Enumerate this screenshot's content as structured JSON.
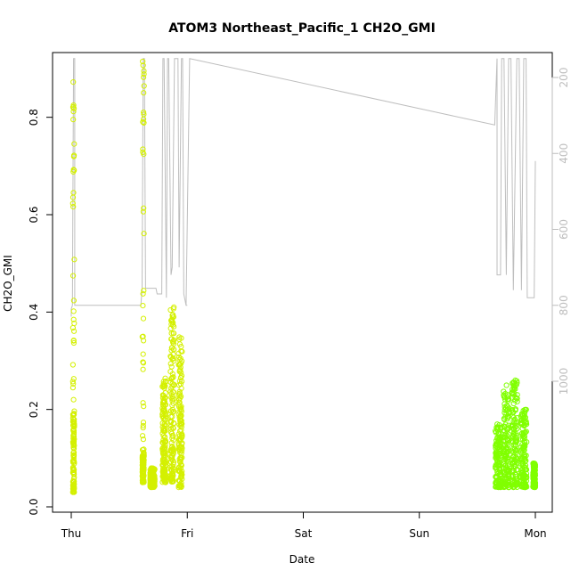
{
  "chart_data": {
    "type": "scatter",
    "title": "ATOM3 Northeast_Pacific_1 CH2O_GMI",
    "xlabel": "Date",
    "ylabel": "CH2O_GMI",
    "x_ticks": [
      "Thu",
      "Fri",
      "Sat",
      "Sun",
      "Mon"
    ],
    "ylim": [
      0,
      0.95
    ],
    "y_ticks": [
      "0.0",
      "0.2",
      "0.4",
      "0.6",
      "0.8"
    ],
    "y2_ticks": [
      "200",
      "400",
      "600",
      "800",
      "1000"
    ],
    "y2lim": [
      1050,
      150
    ],
    "colors": {
      "early": "#d4f000",
      "late": "#80ff00",
      "pressure_line": "#bebebe"
    },
    "series": [
      {
        "clusters": [
          {
            "x": 0.02,
            "w": 0.012,
            "ymin": 0.03,
            "ymax": 0.2,
            "ytop": 0.875
          },
          {
            "x": 0.62,
            "w": 0.015,
            "ymin": 0.05,
            "ymax": 0.12,
            "ytop": 0.92
          },
          {
            "x": 0.7,
            "w": 0.04,
            "ymin": 0.04,
            "ymax": 0.08,
            "ytop": 0.08
          },
          {
            "x": 0.8,
            "w": 0.03,
            "ymin": 0.05,
            "ymax": 0.27,
            "ytop": 0.27
          },
          {
            "x": 0.87,
            "w": 0.03,
            "ymin": 0.05,
            "ymax": 0.42,
            "ytop": 0.42
          },
          {
            "x": 0.94,
            "w": 0.03,
            "ymin": 0.04,
            "ymax": 0.35,
            "ytop": 0.35
          }
        ]
      },
      {
        "clusters": [
          {
            "x": 3.68,
            "w": 0.05,
            "ymin": 0.04,
            "ymax": 0.17,
            "ytop": 0.17
          },
          {
            "x": 3.75,
            "w": 0.05,
            "ymin": 0.04,
            "ymax": 0.25,
            "ytop": 0.25
          },
          {
            "x": 3.82,
            "w": 0.05,
            "ymin": 0.04,
            "ymax": 0.26,
            "ytop": 0.26
          },
          {
            "x": 3.9,
            "w": 0.05,
            "ymin": 0.04,
            "ymax": 0.2,
            "ytop": 0.2
          },
          {
            "x": 3.99,
            "w": 0.02,
            "ymin": 0.04,
            "ymax": 0.09,
            "ytop": 0.09
          }
        ]
      },
      {
        "points": [
          [
            0.0,
            830
          ],
          [
            0.0,
            810
          ],
          [
            0.01,
            800
          ],
          [
            0.02,
            150
          ],
          [
            0.03,
            150
          ],
          [
            0.03,
            800
          ],
          [
            0.6,
            800
          ],
          [
            0.61,
            760
          ],
          [
            0.62,
            150
          ],
          [
            0.63,
            150
          ],
          [
            0.64,
            755
          ],
          [
            0.73,
            755
          ],
          [
            0.74,
            770
          ],
          [
            0.78,
            770
          ],
          [
            0.79,
            150
          ],
          [
            0.8,
            150
          ],
          [
            0.82,
            780
          ],
          [
            0.83,
            150
          ],
          [
            0.84,
            150
          ],
          [
            0.86,
            720
          ],
          [
            0.87,
            700
          ],
          [
            0.89,
            150
          ],
          [
            0.9,
            150
          ],
          [
            0.92,
            150
          ],
          [
            0.93,
            700
          ],
          [
            0.95,
            150
          ],
          [
            0.96,
            150
          ],
          [
            0.97,
            770
          ],
          [
            0.99,
            800
          ],
          [
            1.0,
            800
          ],
          [
            0.99,
            800
          ],
          [
            0.99,
            800
          ],
          [
            1.02,
            150
          ],
          [
            3.65,
            325
          ],
          [
            3.67,
            150
          ],
          [
            3.67,
            720
          ],
          [
            3.7,
            720
          ],
          [
            3.71,
            150
          ],
          [
            3.73,
            150
          ],
          [
            3.75,
            720
          ],
          [
            3.77,
            150
          ],
          [
            3.79,
            150
          ],
          [
            3.81,
            760
          ],
          [
            3.84,
            150
          ],
          [
            3.86,
            150
          ],
          [
            3.88,
            760
          ],
          [
            3.9,
            150
          ],
          [
            3.92,
            150
          ],
          [
            3.93,
            780
          ],
          [
            3.99,
            780
          ],
          [
            3.99,
            780
          ],
          [
            4.0,
            420
          ]
        ]
      }
    ]
  }
}
